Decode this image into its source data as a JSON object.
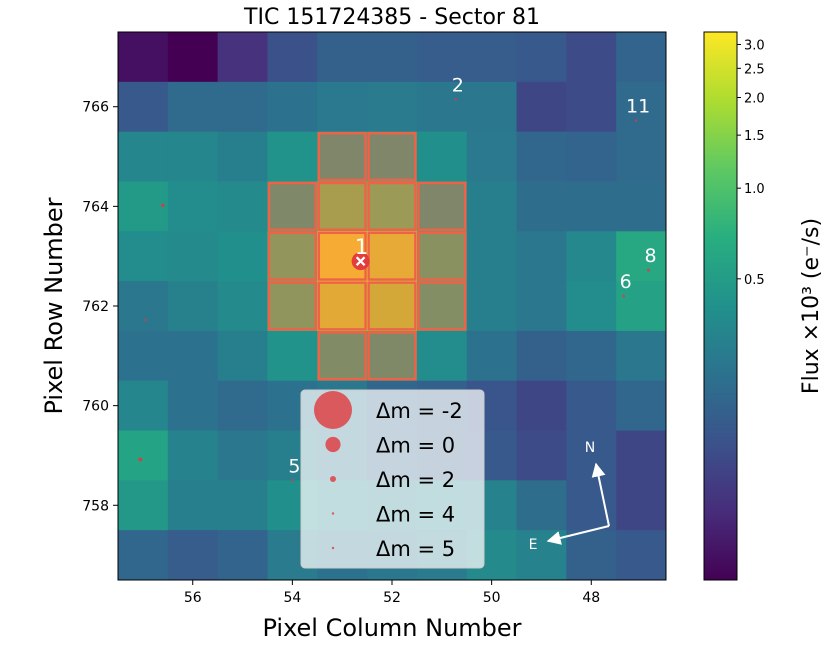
{
  "chart_data": {
    "type": "heatmap",
    "title": "TIC 151724385 - Sector 81",
    "xlabel": "Pixel Column Number",
    "ylabel": "Pixel Row Number",
    "colorbar_label": "Flux ×10³ (e⁻/s)",
    "x_inverted": true,
    "xlim": [
      57.5,
      46.5
    ],
    "ylim": [
      756.5,
      767.5
    ],
    "xticks": [
      "56",
      "54",
      "52",
      "50",
      "48"
    ],
    "yticks": [
      "758",
      "760",
      "762",
      "764",
      "766"
    ],
    "colorbar_ticks": [
      "0.5",
      "1.0",
      "1.5",
      "2.0",
      "2.5",
      "3.0"
    ],
    "colorbar_range": [
      0.05,
      3.3
    ],
    "columns": [
      57,
      56,
      55,
      54,
      53,
      52,
      51,
      50,
      49,
      48,
      47
    ],
    "rows": [
      767,
      766,
      765,
      764,
      763,
      762,
      761,
      760,
      759,
      758,
      757
    ],
    "flux": [
      [
        0.06,
        0.05,
        0.09,
        0.14,
        0.18,
        0.18,
        0.17,
        0.17,
        0.16,
        0.13,
        0.19
      ],
      [
        0.16,
        0.21,
        0.21,
        0.24,
        0.27,
        0.28,
        0.26,
        0.26,
        0.12,
        0.13,
        0.21
      ],
      [
        0.34,
        0.34,
        0.3,
        0.42,
        0.56,
        0.56,
        0.4,
        0.27,
        0.2,
        0.19,
        0.21
      ],
      [
        0.48,
        0.38,
        0.36,
        0.6,
        1.3,
        1.1,
        0.55,
        0.3,
        0.22,
        0.22,
        0.22
      ],
      [
        0.38,
        0.36,
        0.4,
        0.95,
        3.3,
        2.8,
        0.8,
        0.3,
        0.26,
        0.35,
        0.62
      ],
      [
        0.26,
        0.31,
        0.36,
        0.9,
        2.6,
        2.2,
        0.72,
        0.3,
        0.26,
        0.38,
        0.55
      ],
      [
        0.24,
        0.24,
        0.3,
        0.42,
        0.68,
        0.62,
        0.38,
        0.24,
        0.18,
        0.2,
        0.26
      ],
      [
        0.34,
        0.24,
        0.21,
        0.24,
        0.26,
        0.2,
        0.18,
        0.15,
        0.12,
        0.16,
        0.2
      ],
      [
        0.56,
        0.32,
        0.26,
        0.3,
        0.24,
        0.2,
        0.17,
        0.16,
        0.13,
        0.16,
        0.12
      ],
      [
        0.46,
        0.3,
        0.3,
        0.4,
        0.34,
        0.3,
        0.34,
        0.32,
        0.22,
        0.16,
        0.12
      ],
      [
        0.2,
        0.17,
        0.19,
        0.28,
        0.24,
        0.26,
        0.28,
        0.36,
        0.32,
        0.18,
        0.16
      ]
    ],
    "aperture": [
      [
        53,
        765
      ],
      [
        52,
        765
      ],
      [
        54,
        764
      ],
      [
        53,
        764
      ],
      [
        52,
        764
      ],
      [
        51,
        764
      ],
      [
        54,
        763
      ],
      [
        53,
        763
      ],
      [
        52,
        763
      ],
      [
        51,
        763
      ],
      [
        54,
        762
      ],
      [
        53,
        762
      ],
      [
        52,
        762
      ],
      [
        51,
        762
      ],
      [
        53,
        761
      ],
      [
        52,
        761
      ]
    ],
    "aperture_color": "#ee6347",
    "marker_color": "#e0383c",
    "target": {
      "label": "1",
      "col": 52.63,
      "row": 762.9,
      "dm": -0.5
    },
    "stars": [
      {
        "label": "2",
        "col": 50.72,
        "row": 766.15,
        "dm": 4.6
      },
      {
        "label": "11",
        "col": 47.1,
        "row": 765.72,
        "dm": 4.6
      },
      {
        "label": "8",
        "col": 46.85,
        "row": 762.72,
        "dm": 3.6
      },
      {
        "label": "6",
        "col": 47.35,
        "row": 762.2,
        "dm": 3.8
      },
      {
        "label": "5",
        "col": 54.0,
        "row": 758.5,
        "dm": 4.7
      },
      {
        "label": "",
        "col": 56.6,
        "row": 764.02,
        "dm": 3.2
      },
      {
        "label": "",
        "col": 56.95,
        "row": 761.72,
        "dm": 4.9
      },
      {
        "label": "",
        "col": 57.05,
        "row": 758.92,
        "dm": 2.9
      }
    ],
    "legend": [
      {
        "label": "Δm =  -2",
        "dm": -2
      },
      {
        "label": "Δm =  0",
        "dm": 0
      },
      {
        "label": "Δm =  2",
        "dm": 2
      },
      {
        "label": "Δm =  4",
        "dm": 4
      },
      {
        "label": "Δm =  5",
        "dm": 5
      }
    ],
    "compass": {
      "north_label": "N",
      "east_label": "E"
    }
  }
}
